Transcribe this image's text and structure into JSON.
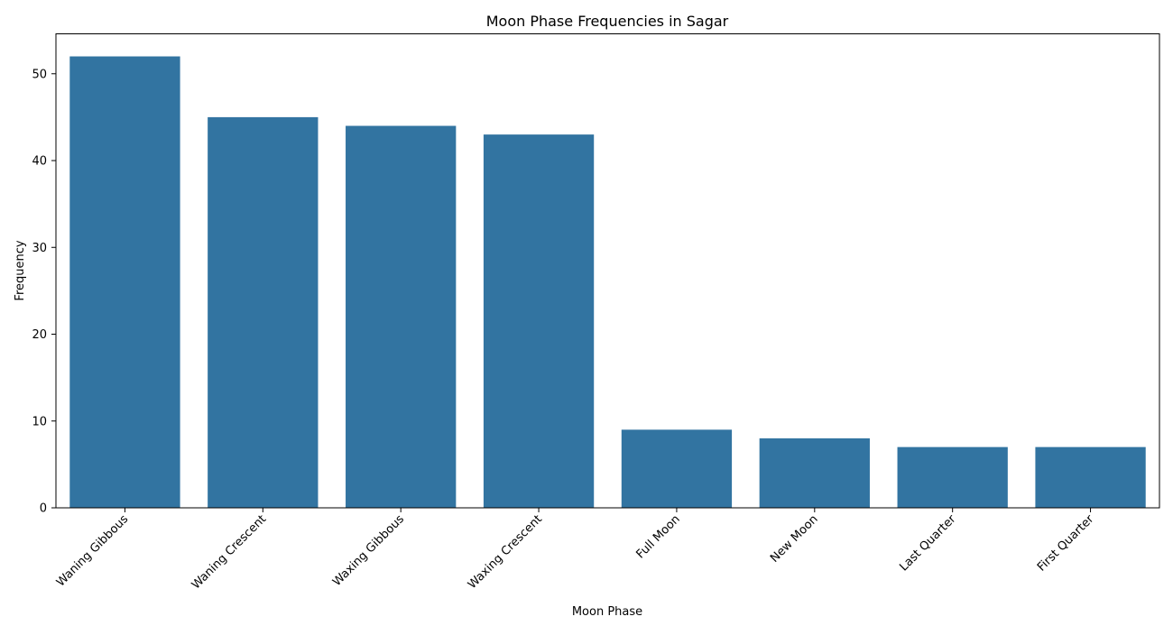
{
  "chart_data": {
    "type": "bar",
    "title": "Moon Phase Frequencies in Sagar",
    "xlabel": "Moon Phase",
    "ylabel": "Frequency",
    "categories": [
      "Waning Gibbous",
      "Waning Crescent",
      "Waxing Gibbous",
      "Waxing Crescent",
      "Full Moon",
      "New Moon",
      "Last Quarter",
      "First Quarter"
    ],
    "values": [
      52,
      45,
      44,
      43,
      9,
      8,
      7,
      7
    ],
    "ylim": [
      0,
      54.6
    ],
    "yticks": [
      0,
      10,
      20,
      30,
      40,
      50
    ],
    "x_tick_rotation": 45,
    "grid": false,
    "legend": "none",
    "bar_color": "#3274a1"
  }
}
